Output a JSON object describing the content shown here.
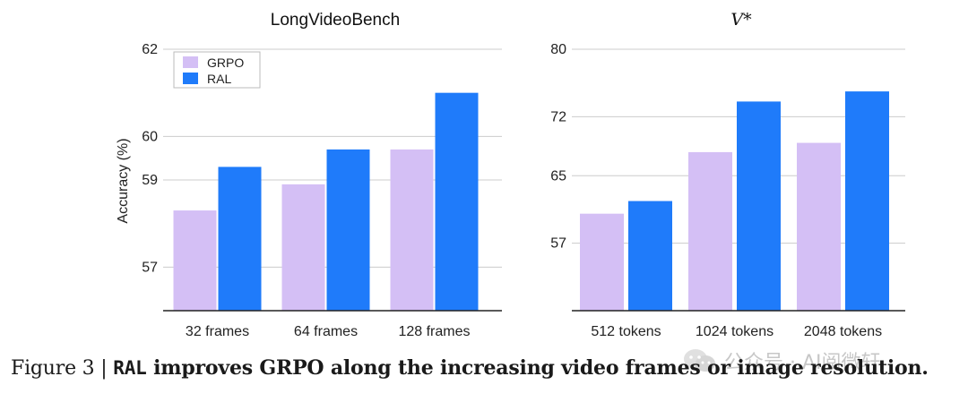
{
  "colors": {
    "grpo": "#d4bff5",
    "ral": "#1f7bfa",
    "grid": "#cccccc",
    "axis": "#222222"
  },
  "chart_data": [
    {
      "type": "bar",
      "title": "LongVideoBench",
      "ylabel": "Accuracy (%)",
      "xlabel": "",
      "categories": [
        "32 frames",
        "64 frames",
        "128 frames"
      ],
      "yticks": [
        "62",
        "60",
        "59",
        "57"
      ],
      "ylim": [
        56,
        62
      ],
      "series": [
        {
          "name": "GRPO",
          "values": [
            58.3,
            58.9,
            59.7
          ]
        },
        {
          "name": "RAL",
          "values": [
            59.3,
            59.7,
            61.0
          ]
        }
      ],
      "legend": {
        "position": "top-left",
        "entries": [
          "GRPO",
          "RAL"
        ]
      },
      "grid": true
    },
    {
      "type": "bar",
      "title": "V*",
      "ylabel": "",
      "xlabel": "",
      "categories": [
        "512 tokens",
        "1024 tokens",
        "2048 tokens"
      ],
      "yticks": [
        "80",
        "72",
        "65",
        "57"
      ],
      "ylim": [
        49,
        80
      ],
      "series": [
        {
          "name": "GRPO",
          "values": [
            60.5,
            67.8,
            68.9
          ]
        },
        {
          "name": "RAL",
          "values": [
            62.0,
            73.8,
            75.0
          ]
        }
      ],
      "legend": null,
      "grid": true
    }
  ],
  "caption": {
    "label": "Figure 3 | ",
    "code": "RAL",
    "text": " improves GRPO along the increasing video frames or image resolution."
  },
  "watermark": {
    "text": "公众号 · AI阅微轩"
  }
}
